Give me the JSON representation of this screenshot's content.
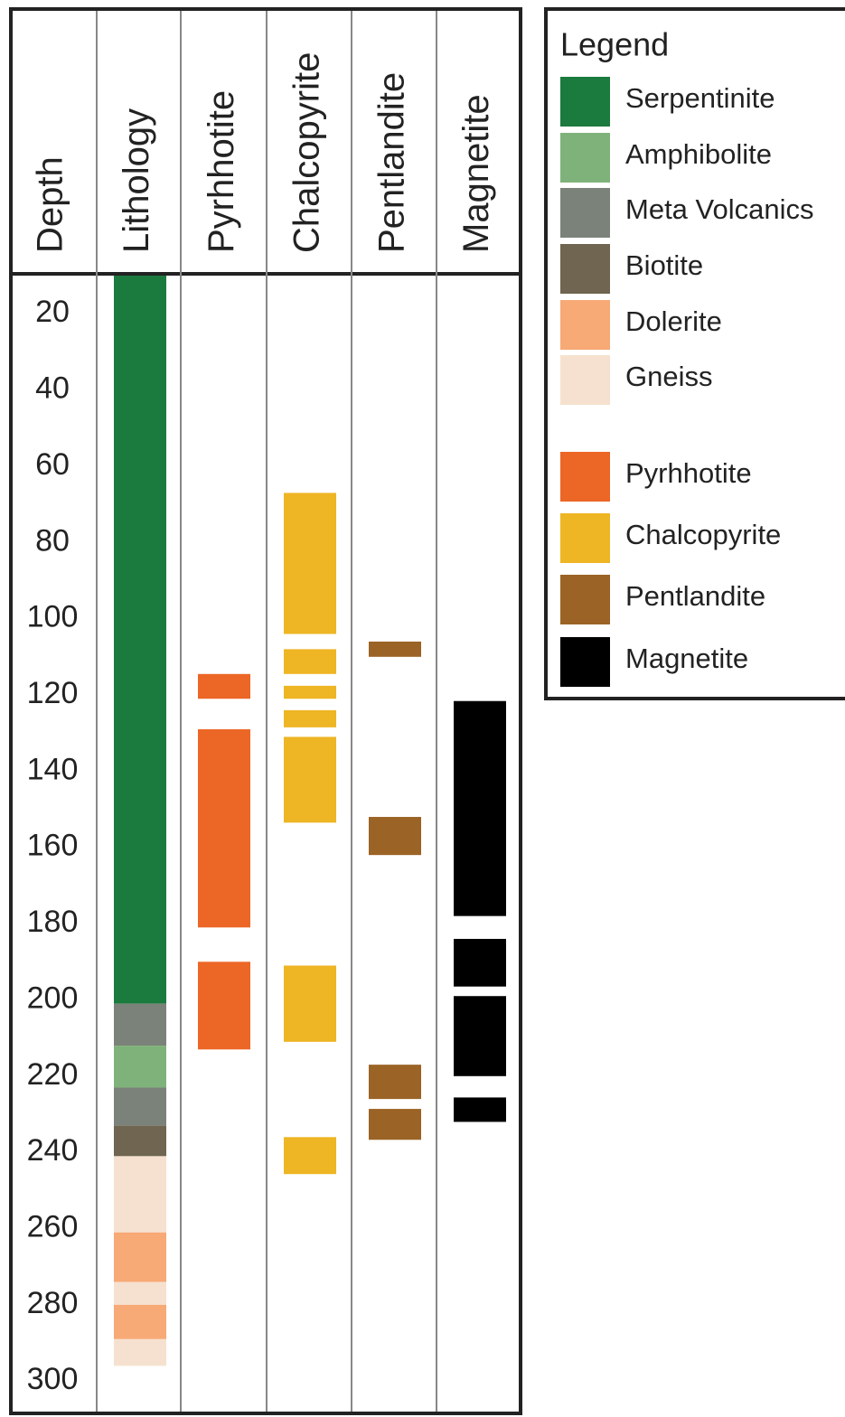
{
  "chart_data": {
    "type": "strip-log",
    "ylabel": "Depth",
    "ylim": [
      10,
      308
    ],
    "yticks": [
      20,
      40,
      60,
      80,
      100,
      120,
      140,
      160,
      180,
      200,
      220,
      240,
      260,
      280,
      300
    ],
    "series": [
      {
        "name": "Lithology",
        "intervals": [
          {
            "from": 10,
            "to": 201,
            "color": "#1b7a3e"
          },
          {
            "from": 201,
            "to": 212,
            "color": "#7b8279"
          },
          {
            "from": 212,
            "to": 223,
            "color": "#7fb27a"
          },
          {
            "from": 223,
            "to": 233,
            "color": "#7b8279"
          },
          {
            "from": 233,
            "to": 241,
            "color": "#6f6550"
          },
          {
            "from": 241,
            "to": 261,
            "color": "#f6e1d0"
          },
          {
            "from": 261,
            "to": 274,
            "color": "#f7a976"
          },
          {
            "from": 274,
            "to": 280,
            "color": "#f6e1d0"
          },
          {
            "from": 280,
            "to": 289,
            "color": "#f7a976"
          },
          {
            "from": 289,
            "to": 296,
            "color": "#f6e1d0"
          }
        ]
      },
      {
        "name": "Pyrhhotite",
        "color": "#ec6626",
        "intervals": [
          {
            "from": 114.5,
            "to": 121
          },
          {
            "from": 129,
            "to": 181
          },
          {
            "from": 190,
            "to": 213
          }
        ]
      },
      {
        "name": "Chalcopyrite",
        "color": "#eeb524",
        "intervals": [
          {
            "from": 67,
            "to": 104
          },
          {
            "from": 108,
            "to": 114.5
          },
          {
            "from": 117.6,
            "to": 121
          },
          {
            "from": 124,
            "to": 128.5
          },
          {
            "from": 131,
            "to": 153.5
          },
          {
            "from": 191,
            "to": 211
          },
          {
            "from": 236,
            "to": 245.7
          }
        ]
      },
      {
        "name": "Pentlandite",
        "color": "#9b6325",
        "intervals": [
          {
            "from": 106,
            "to": 110
          },
          {
            "from": 152,
            "to": 162
          },
          {
            "from": 217,
            "to": 226
          },
          {
            "from": 228.6,
            "to": 236.7
          }
        ]
      },
      {
        "name": "Magnetite",
        "color": "#000000",
        "intervals": [
          {
            "from": 121.6,
            "to": 178
          },
          {
            "from": 184,
            "to": 196.5
          },
          {
            "from": 199,
            "to": 220
          },
          {
            "from": 225.6,
            "to": 232
          }
        ]
      }
    ],
    "legend": {
      "title": "Legend",
      "items": [
        {
          "name": "Serpentinite",
          "color": "#1b7a3e"
        },
        {
          "name": "Amphibolite",
          "color": "#7fb27a"
        },
        {
          "name": "Meta Volcanics",
          "color": "#7b8279"
        },
        {
          "name": "Biotite",
          "color": "#6f6550"
        },
        {
          "name": "Dolerite",
          "color": "#f7a976"
        },
        {
          "name": "Gneiss",
          "color": "#f6e1d0"
        },
        {
          "name": "Pyrhhotite",
          "color": "#ec6626"
        },
        {
          "name": "Chalcopyrite",
          "color": "#eeb524"
        },
        {
          "name": "Pentlandite",
          "color": "#9b6325"
        },
        {
          "name": "Magnetite",
          "color": "#000000"
        }
      ]
    }
  }
}
